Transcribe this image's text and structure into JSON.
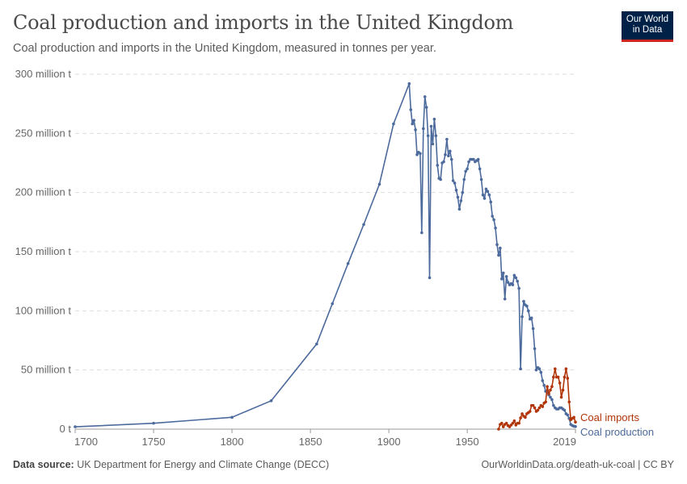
{
  "header": {
    "title": "Coal production and imports in the United Kingdom",
    "subtitle": "Coal production and imports in the United Kingdom, measured in tonnes per year.",
    "logo_line1": "Our World",
    "logo_line2": "in Data"
  },
  "footer": {
    "source_label": "Data source:",
    "source": "UK Department for Energy and Climate Change (DECC)",
    "link": "OurWorldinData.org/death-uk-coal | CC BY"
  },
  "chart_data": {
    "type": "line",
    "title": "Coal production and imports in the United Kingdom",
    "ylabel": "",
    "xlabel": "",
    "unit": "million tonnes",
    "xlim": [
      1700,
      2019
    ],
    "ylim": [
      0,
      300
    ],
    "x_ticks": [
      "1700",
      "1750",
      "1800",
      "1850",
      "1900",
      "1950",
      "2019"
    ],
    "x_tick_values": [
      1700,
      1750,
      1800,
      1850,
      1900,
      1950,
      2019
    ],
    "y_ticks": [
      "0 t",
      "50 million t",
      "100 million t",
      "150 million t",
      "200 million t",
      "250 million t",
      "300 million t"
    ],
    "y_tick_values": [
      0,
      50,
      100,
      150,
      200,
      250,
      300
    ],
    "grid": "horizontal dashed",
    "legend": "inline labels at line ends (right)",
    "series": [
      {
        "name": "Coal production",
        "color": "#4c6a9c",
        "x": [
          1700,
          1750,
          1800,
          1825,
          1854,
          1864,
          1874,
          1884,
          1894,
          1903,
          1913,
          1914,
          1915,
          1916,
          1917,
          1918,
          1919,
          1920,
          1921,
          1922,
          1923,
          1924,
          1925,
          1926,
          1927,
          1928,
          1929,
          1930,
          1931,
          1932,
          1933,
          1934,
          1935,
          1936,
          1937,
          1938,
          1939,
          1940,
          1941,
          1942,
          1943,
          1944,
          1945,
          1946,
          1947,
          1948,
          1949,
          1950,
          1951,
          1952,
          1953,
          1954,
          1955,
          1956,
          1957,
          1958,
          1959,
          1960,
          1961,
          1962,
          1963,
          1964,
          1965,
          1966,
          1967,
          1968,
          1969,
          1970,
          1971,
          1972,
          1973,
          1974,
          1975,
          1976,
          1977,
          1978,
          1979,
          1980,
          1981,
          1982,
          1983,
          1984,
          1985,
          1986,
          1987,
          1988,
          1989,
          1990,
          1991,
          1992,
          1993,
          1994,
          1995,
          1996,
          1997,
          1998,
          1999,
          2000,
          2001,
          2002,
          2003,
          2004,
          2005,
          2006,
          2007,
          2008,
          2009,
          2010,
          2011,
          2012,
          2013,
          2014,
          2015,
          2016,
          2017,
          2018,
          2019
        ],
        "values": [
          2,
          5,
          10,
          24,
          72,
          106,
          140,
          173,
          207,
          258,
          292,
          270,
          258,
          261,
          253,
          232,
          234,
          233,
          166,
          254,
          281,
          272,
          248,
          128,
          256,
          241,
          262,
          248,
          223,
          212,
          211,
          225,
          226,
          232,
          245,
          231,
          235,
          228,
          210,
          208,
          202,
          196,
          186,
          193,
          200,
          211,
          218,
          220,
          226,
          228,
          228,
          228,
          226,
          227,
          228,
          220,
          211,
          198,
          195,
          203,
          201,
          198,
          192,
          180,
          177,
          170,
          156,
          147,
          153,
          127,
          132,
          110,
          129,
          124,
          122,
          123,
          122,
          130,
          128,
          125,
          119,
          51,
          95,
          108,
          105,
          104,
          100,
          93,
          94,
          85,
          68,
          50,
          52,
          51,
          48,
          41,
          37,
          32,
          31,
          29,
          27,
          25,
          20,
          18,
          17,
          17,
          18,
          18,
          17,
          16,
          13,
          12,
          9,
          4,
          3,
          2.5,
          2.2
        ]
      },
      {
        "name": "Coal imports",
        "color": "#b13507",
        "x": [
          1970,
          1971,
          1972,
          1973,
          1974,
          1975,
          1976,
          1977,
          1978,
          1979,
          1980,
          1981,
          1982,
          1983,
          1984,
          1985,
          1986,
          1987,
          1988,
          1989,
          1990,
          1991,
          1992,
          1993,
          1994,
          1995,
          1996,
          1997,
          1998,
          1999,
          2000,
          2001,
          2002,
          2003,
          2004,
          2005,
          2006,
          2007,
          2008,
          2009,
          2010,
          2011,
          2012,
          2013,
          2014,
          2015,
          2016,
          2017,
          2018,
          2019
        ],
        "values": [
          0,
          4,
          5,
          2,
          4,
          5,
          3,
          2,
          3.5,
          5,
          7,
          3.5,
          5,
          5,
          9.5,
          13,
          11,
          10,
          13,
          14,
          15,
          20,
          20,
          18,
          15,
          16,
          18,
          20,
          19,
          22,
          23,
          36,
          30,
          33,
          36,
          44,
          51,
          44,
          44,
          39,
          27,
          33,
          44,
          51,
          43,
          23,
          8,
          9,
          10,
          6
        ]
      }
    ]
  }
}
